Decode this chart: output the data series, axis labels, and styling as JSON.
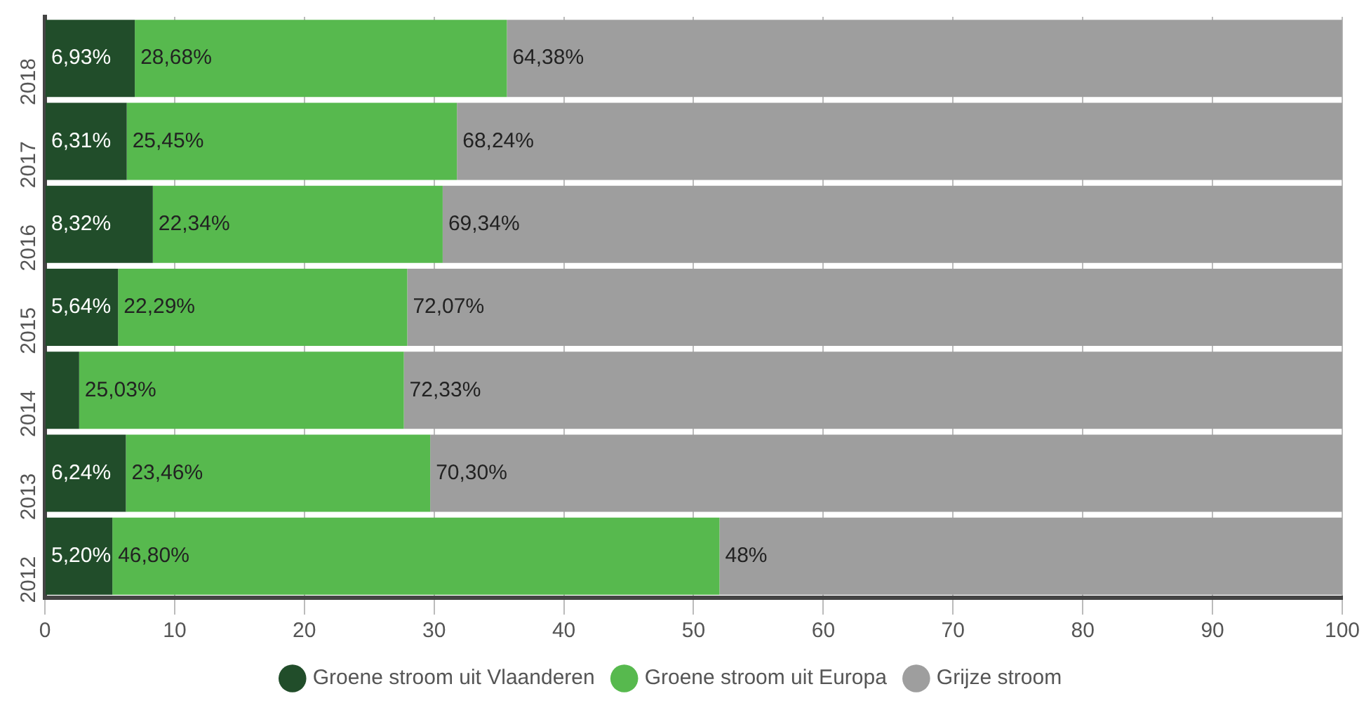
{
  "chart_data": {
    "type": "bar",
    "orientation": "horizontal",
    "stacked": true,
    "categories": [
      "2018",
      "2017",
      "2016",
      "2015",
      "2014",
      "2013",
      "2012"
    ],
    "series": [
      {
        "name": "Groene stroom uit Vlaanderen",
        "color": "#214d2a",
        "values": [
          6.93,
          6.31,
          8.32,
          5.64,
          2.64,
          6.24,
          5.2
        ],
        "value_labels": [
          "6,93%",
          "6,31%",
          "8,32%",
          "5,64%",
          null,
          "6,24%",
          "5,20%"
        ]
      },
      {
        "name": "Groene stroom uit Europa",
        "color": "#57b94e",
        "values": [
          28.68,
          25.45,
          22.34,
          22.29,
          25.03,
          23.46,
          46.8
        ],
        "value_labels": [
          "28,68%",
          "25,45%",
          "22,34%",
          "22,29%",
          "25,03%",
          "23,46%",
          "46,80%"
        ]
      },
      {
        "name": "Grijze stroom",
        "color": "#9e9e9e",
        "values": [
          64.38,
          68.24,
          69.34,
          72.07,
          72.33,
          70.3,
          48
        ],
        "value_labels": [
          "64,38%",
          "68,24%",
          "69,34%",
          "72,07%",
          "72,33%",
          "70,30%",
          "48%"
        ]
      }
    ],
    "xlim": [
      0,
      100
    ],
    "xticks": [
      0,
      10,
      20,
      30,
      40,
      50,
      60,
      70,
      80,
      90,
      100
    ],
    "grid": "x",
    "legend": "bottom"
  }
}
